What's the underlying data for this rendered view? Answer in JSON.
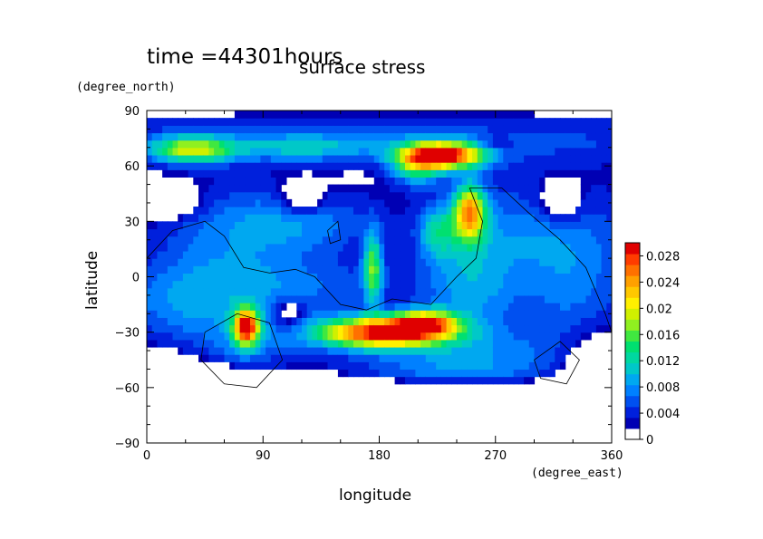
{
  "header": {
    "time_label": "time =44301hours",
    "title": "surface stress"
  },
  "chart_data": {
    "type": "heatmap",
    "title": "surface stress",
    "subtitle": "time =44301hours",
    "xlabel": "longitude",
    "ylabel": "latitude",
    "xunit": "(degree_east)",
    "yunit": "(degree_north)",
    "xlim": [
      0,
      360
    ],
    "ylim": [
      -90,
      90
    ],
    "xticks": [
      0,
      90,
      180,
      270,
      360
    ],
    "xtick_labels": [
      "0",
      "90",
      "180",
      "270",
      "360"
    ],
    "yticks": [
      -90,
      -60,
      -30,
      0,
      30,
      60,
      90
    ],
    "ytick_labels": [
      "−90",
      "−60",
      "−30",
      "0",
      "30",
      "60",
      "90"
    ],
    "colorbar": {
      "min": 0,
      "max": 0.03,
      "ticks": [
        0,
        0.004,
        0.008,
        0.012,
        0.016,
        0.02,
        0.024,
        0.028
      ],
      "tick_labels": [
        "0",
        "0.004",
        "0.008",
        "0.012",
        "0.016",
        "0.02",
        "0.024",
        "0.028"
      ],
      "colors": [
        "#ffffff",
        "#0000b4",
        "#0020dc",
        "#0050f0",
        "#0080ff",
        "#00a8f0",
        "#00c8c8",
        "#00d8a0",
        "#00e070",
        "#40e840",
        "#90f020",
        "#d0f000",
        "#fff000",
        "#ffc800",
        "#ffa000",
        "#ff7000",
        "#ff3c00",
        "#e00000"
      ]
    },
    "features": [
      {
        "name": "arctic band",
        "lon": [
          0,
          360
        ],
        "lat": [
          55,
          85
        ],
        "approx_value": 0.006
      },
      {
        "name": "north atlantic-like max",
        "lon": [
          195,
          265
        ],
        "lat": [
          58,
          72
        ],
        "approx_value": 0.03
      },
      {
        "name": "north west high",
        "lon": [
          10,
          60
        ],
        "lat": [
          63,
          74
        ],
        "approx_value": 0.022
      },
      {
        "name": "southern ocean max",
        "lon": [
          140,
          220
        ],
        "lat": [
          -40,
          -22
        ],
        "approx_value": 0.03
      },
      {
        "name": "south ring max",
        "lon": [
          65,
          90
        ],
        "lat": [
          -38,
          -18
        ],
        "approx_value": 0.028
      },
      {
        "name": "central continent max",
        "lon": [
          235,
          260
        ],
        "lat": [
          25,
          45
        ],
        "approx_value": 0.024
      },
      {
        "name": "equatorial streak",
        "lon": [
          170,
          180
        ],
        "lat": [
          -10,
          20
        ],
        "approx_value": 0.018
      }
    ]
  }
}
